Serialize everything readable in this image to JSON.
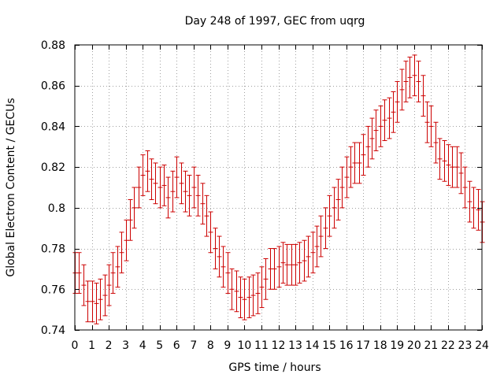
{
  "chart_data": {
    "type": "scatter",
    "title": "Day 248 of 1997, GEC from uqrg",
    "xlabel": "GPS time / hours",
    "ylabel": "Global Electron Content / GECUs",
    "xlim": [
      0,
      24
    ],
    "ylim": [
      0.74,
      0.88
    ],
    "x_ticks": [
      0,
      1,
      2,
      3,
      4,
      5,
      6,
      7,
      8,
      9,
      10,
      11,
      12,
      13,
      14,
      15,
      16,
      17,
      18,
      19,
      20,
      21,
      22,
      23,
      24
    ],
    "x_tick_labels": [
      "0",
      "1",
      "2",
      "3",
      "4",
      "5",
      "6",
      "7",
      "8",
      "9",
      "10",
      "11",
      "12",
      "13",
      "14",
      "15",
      "16",
      "17",
      "18",
      "19",
      "20",
      "21",
      "22",
      "23",
      "24"
    ],
    "y_ticks": [
      0.74,
      0.76,
      0.78,
      0.8,
      0.82,
      0.84,
      0.86,
      0.88
    ],
    "y_tick_labels": [
      "0.74",
      "0.76",
      "0.78",
      "0.8",
      "0.82",
      "0.84",
      "0.86",
      "0.88"
    ],
    "grid": true,
    "color": "#cc0000",
    "error": 0.01,
    "series": [
      {
        "name": "GEC",
        "x": [
          0,
          0.25,
          0.5,
          0.75,
          1,
          1.25,
          1.5,
          1.75,
          2,
          2.25,
          2.5,
          2.75,
          3,
          3.25,
          3.5,
          3.75,
          4,
          4.25,
          4.5,
          4.75,
          5,
          5.25,
          5.5,
          5.75,
          6,
          6.25,
          6.5,
          6.75,
          7,
          7.25,
          7.5,
          7.75,
          8,
          8.25,
          8.5,
          8.75,
          9,
          9.25,
          9.5,
          9.75,
          10,
          10.25,
          10.5,
          10.75,
          11,
          11.25,
          11.5,
          11.75,
          12,
          12.25,
          12.5,
          12.75,
          13,
          13.25,
          13.5,
          13.75,
          14,
          14.25,
          14.5,
          14.75,
          15,
          15.25,
          15.5,
          15.75,
          16,
          16.25,
          16.5,
          16.75,
          17,
          17.25,
          17.5,
          17.75,
          18,
          18.25,
          18.5,
          18.75,
          19,
          19.25,
          19.5,
          19.75,
          20,
          20.25,
          20.5,
          20.75,
          21,
          21.25,
          21.5,
          21.75,
          22,
          22.25,
          22.5,
          22.75,
          23,
          23.25,
          23.5,
          23.75,
          24
        ],
        "y": [
          0.768,
          0.768,
          0.762,
          0.754,
          0.754,
          0.753,
          0.755,
          0.757,
          0.762,
          0.768,
          0.771,
          0.778,
          0.784,
          0.794,
          0.8,
          0.81,
          0.816,
          0.818,
          0.814,
          0.812,
          0.81,
          0.811,
          0.805,
          0.808,
          0.815,
          0.812,
          0.808,
          0.806,
          0.81,
          0.806,
          0.802,
          0.796,
          0.788,
          0.78,
          0.776,
          0.771,
          0.768,
          0.76,
          0.759,
          0.756,
          0.755,
          0.756,
          0.757,
          0.758,
          0.761,
          0.765,
          0.77,
          0.77,
          0.771,
          0.773,
          0.772,
          0.772,
          0.772,
          0.773,
          0.774,
          0.776,
          0.778,
          0.781,
          0.786,
          0.79,
          0.796,
          0.8,
          0.804,
          0.81,
          0.815,
          0.82,
          0.822,
          0.822,
          0.826,
          0.83,
          0.834,
          0.838,
          0.84,
          0.843,
          0.844,
          0.847,
          0.852,
          0.858,
          0.862,
          0.864,
          0.865,
          0.862,
          0.855,
          0.842,
          0.84,
          0.832,
          0.824,
          0.823,
          0.821,
          0.82,
          0.82,
          0.817,
          0.81,
          0.803,
          0.8,
          0.799,
          0.793
        ]
      }
    ]
  }
}
